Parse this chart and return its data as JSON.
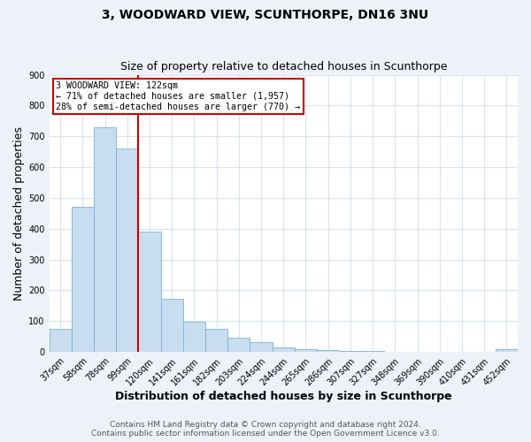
{
  "title": "3, WOODWARD VIEW, SCUNTHORPE, DN16 3NU",
  "subtitle": "Size of property relative to detached houses in Scunthorpe",
  "xlabel": "Distribution of detached houses by size in Scunthorpe",
  "ylabel": "Number of detached properties",
  "bar_labels": [
    "37sqm",
    "58sqm",
    "78sqm",
    "99sqm",
    "120sqm",
    "141sqm",
    "161sqm",
    "182sqm",
    "203sqm",
    "224sqm",
    "244sqm",
    "265sqm",
    "286sqm",
    "307sqm",
    "327sqm",
    "348sqm",
    "369sqm",
    "390sqm",
    "410sqm",
    "431sqm",
    "452sqm"
  ],
  "bar_values": [
    75,
    470,
    730,
    660,
    390,
    172,
    97,
    75,
    46,
    33,
    14,
    10,
    7,
    3,
    2,
    1,
    0,
    0,
    0,
    0,
    8
  ],
  "bar_color": "#c9ddf0",
  "bar_edge_color": "#7ab3d4",
  "vline_color": "#cc0000",
  "ylim": [
    0,
    900
  ],
  "yticks": [
    0,
    100,
    200,
    300,
    400,
    500,
    600,
    700,
    800,
    900
  ],
  "annotation_title": "3 WOODWARD VIEW: 122sqm",
  "annotation_line1": "← 71% of detached houses are smaller (1,957)",
  "annotation_line2": "28% of semi-detached houses are larger (770) →",
  "annotation_box_color": "#ffffff",
  "annotation_box_edge": "#cc0000",
  "footer1": "Contains HM Land Registry data © Crown copyright and database right 2024.",
  "footer2": "Contains public sector information licensed under the Open Government Licence v3.0.",
  "bg_color": "#eef2f8",
  "plot_bg_color": "#ffffff",
  "grid_color": "#d8e4f0",
  "title_fontsize": 10,
  "subtitle_fontsize": 9,
  "axis_label_fontsize": 9,
  "tick_fontsize": 7,
  "footer_fontsize": 6.5,
  "vline_x_idx": 4
}
